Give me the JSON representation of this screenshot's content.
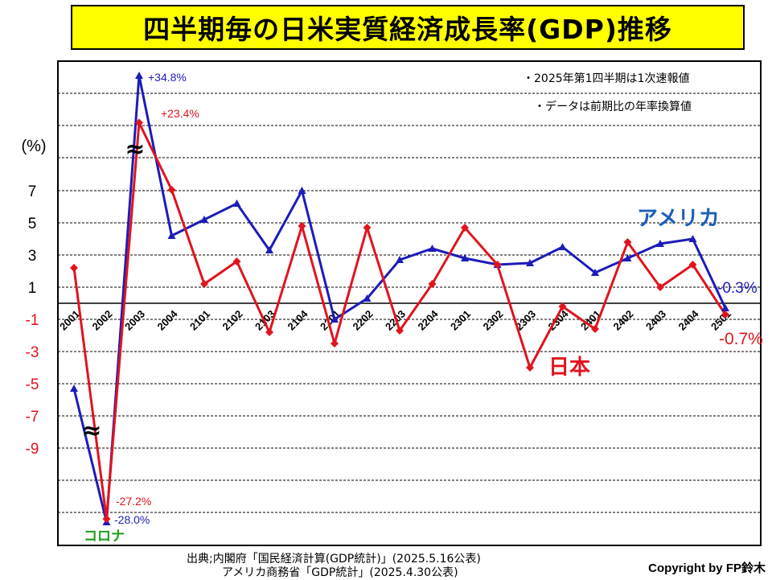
{
  "title": "四半期毎の日米実質経済成長率(GDP)推移",
  "notes": [
    "・2025年第1四半期は1次速報値",
    "・データは前期比の年率換算値"
  ],
  "source_line1": "出典;内閣府「国民経済計算(GDP統計)」(2025.5.16公表)",
  "source_line2": "アメリカ商務省「GDP統計」(2025.4.30公表)",
  "copyright": "Copyright by FP鈴木",
  "colors": {
    "japan": "#e0141e",
    "usa": "#1c1cb8",
    "corona": "#1e9a1e",
    "axis_red": "#e0141e"
  },
  "chart_data": {
    "type": "line",
    "ylabel": "(%)",
    "y_ticks": [
      "7",
      "5",
      "3",
      "1",
      "-1",
      "-3",
      "-5",
      "-7",
      "-9"
    ],
    "y_tick_values": [
      7,
      5,
      3,
      1,
      -1,
      -3,
      -5,
      -7,
      -9
    ],
    "axis_break": true,
    "categories": [
      "2001",
      "2002",
      "2003",
      "2004",
      "2101",
      "2102",
      "2103",
      "2104",
      "2201",
      "2202",
      "2203",
      "2204",
      "2301",
      "2302",
      "2303",
      "2304",
      "2401",
      "2402",
      "2403",
      "2404",
      "2501"
    ],
    "series": [
      {
        "name": "日本",
        "color": "#e0141e",
        "marker": "diamond",
        "values": [
          2.2,
          -27.2,
          23.4,
          7.2,
          1.2,
          2.6,
          -1.8,
          4.8,
          -2.5,
          4.7,
          -1.7,
          1.2,
          4.7,
          2.4,
          -4.0,
          -0.2,
          -1.6,
          3.8,
          1.0,
          2.4,
          -0.7
        ]
      },
      {
        "name": "アメリカ",
        "color": "#1c1cb8",
        "marker": "triangle",
        "values": [
          -5.3,
          -28.0,
          34.8,
          4.2,
          5.2,
          6.2,
          3.3,
          7.0,
          -1.0,
          0.3,
          2.7,
          3.4,
          2.8,
          2.4,
          2.5,
          3.5,
          1.9,
          2.8,
          3.7,
          4.0,
          -0.3
        ]
      }
    ],
    "annotations": [
      {
        "text": "+34.8%",
        "series": "usa",
        "color": "#1c1cb8"
      },
      {
        "text": "+23.4%",
        "series": "japan",
        "color": "#e0141e"
      },
      {
        "text": "-27.2%",
        "series": "japan",
        "color": "#e0141e"
      },
      {
        "text": "-28.0%",
        "series": "usa",
        "color": "#1c1cb8"
      },
      {
        "text": "-0.3%",
        "series": "usa",
        "color": "#1c1cb8"
      },
      {
        "text": "-0.7%",
        "series": "japan",
        "color": "#e0141e"
      },
      {
        "text": "アメリカ",
        "color": "#1c5fb8"
      },
      {
        "text": "日本",
        "color": "#e0141e"
      },
      {
        "text": "コロナ",
        "color": "#1e9a1e"
      }
    ]
  }
}
